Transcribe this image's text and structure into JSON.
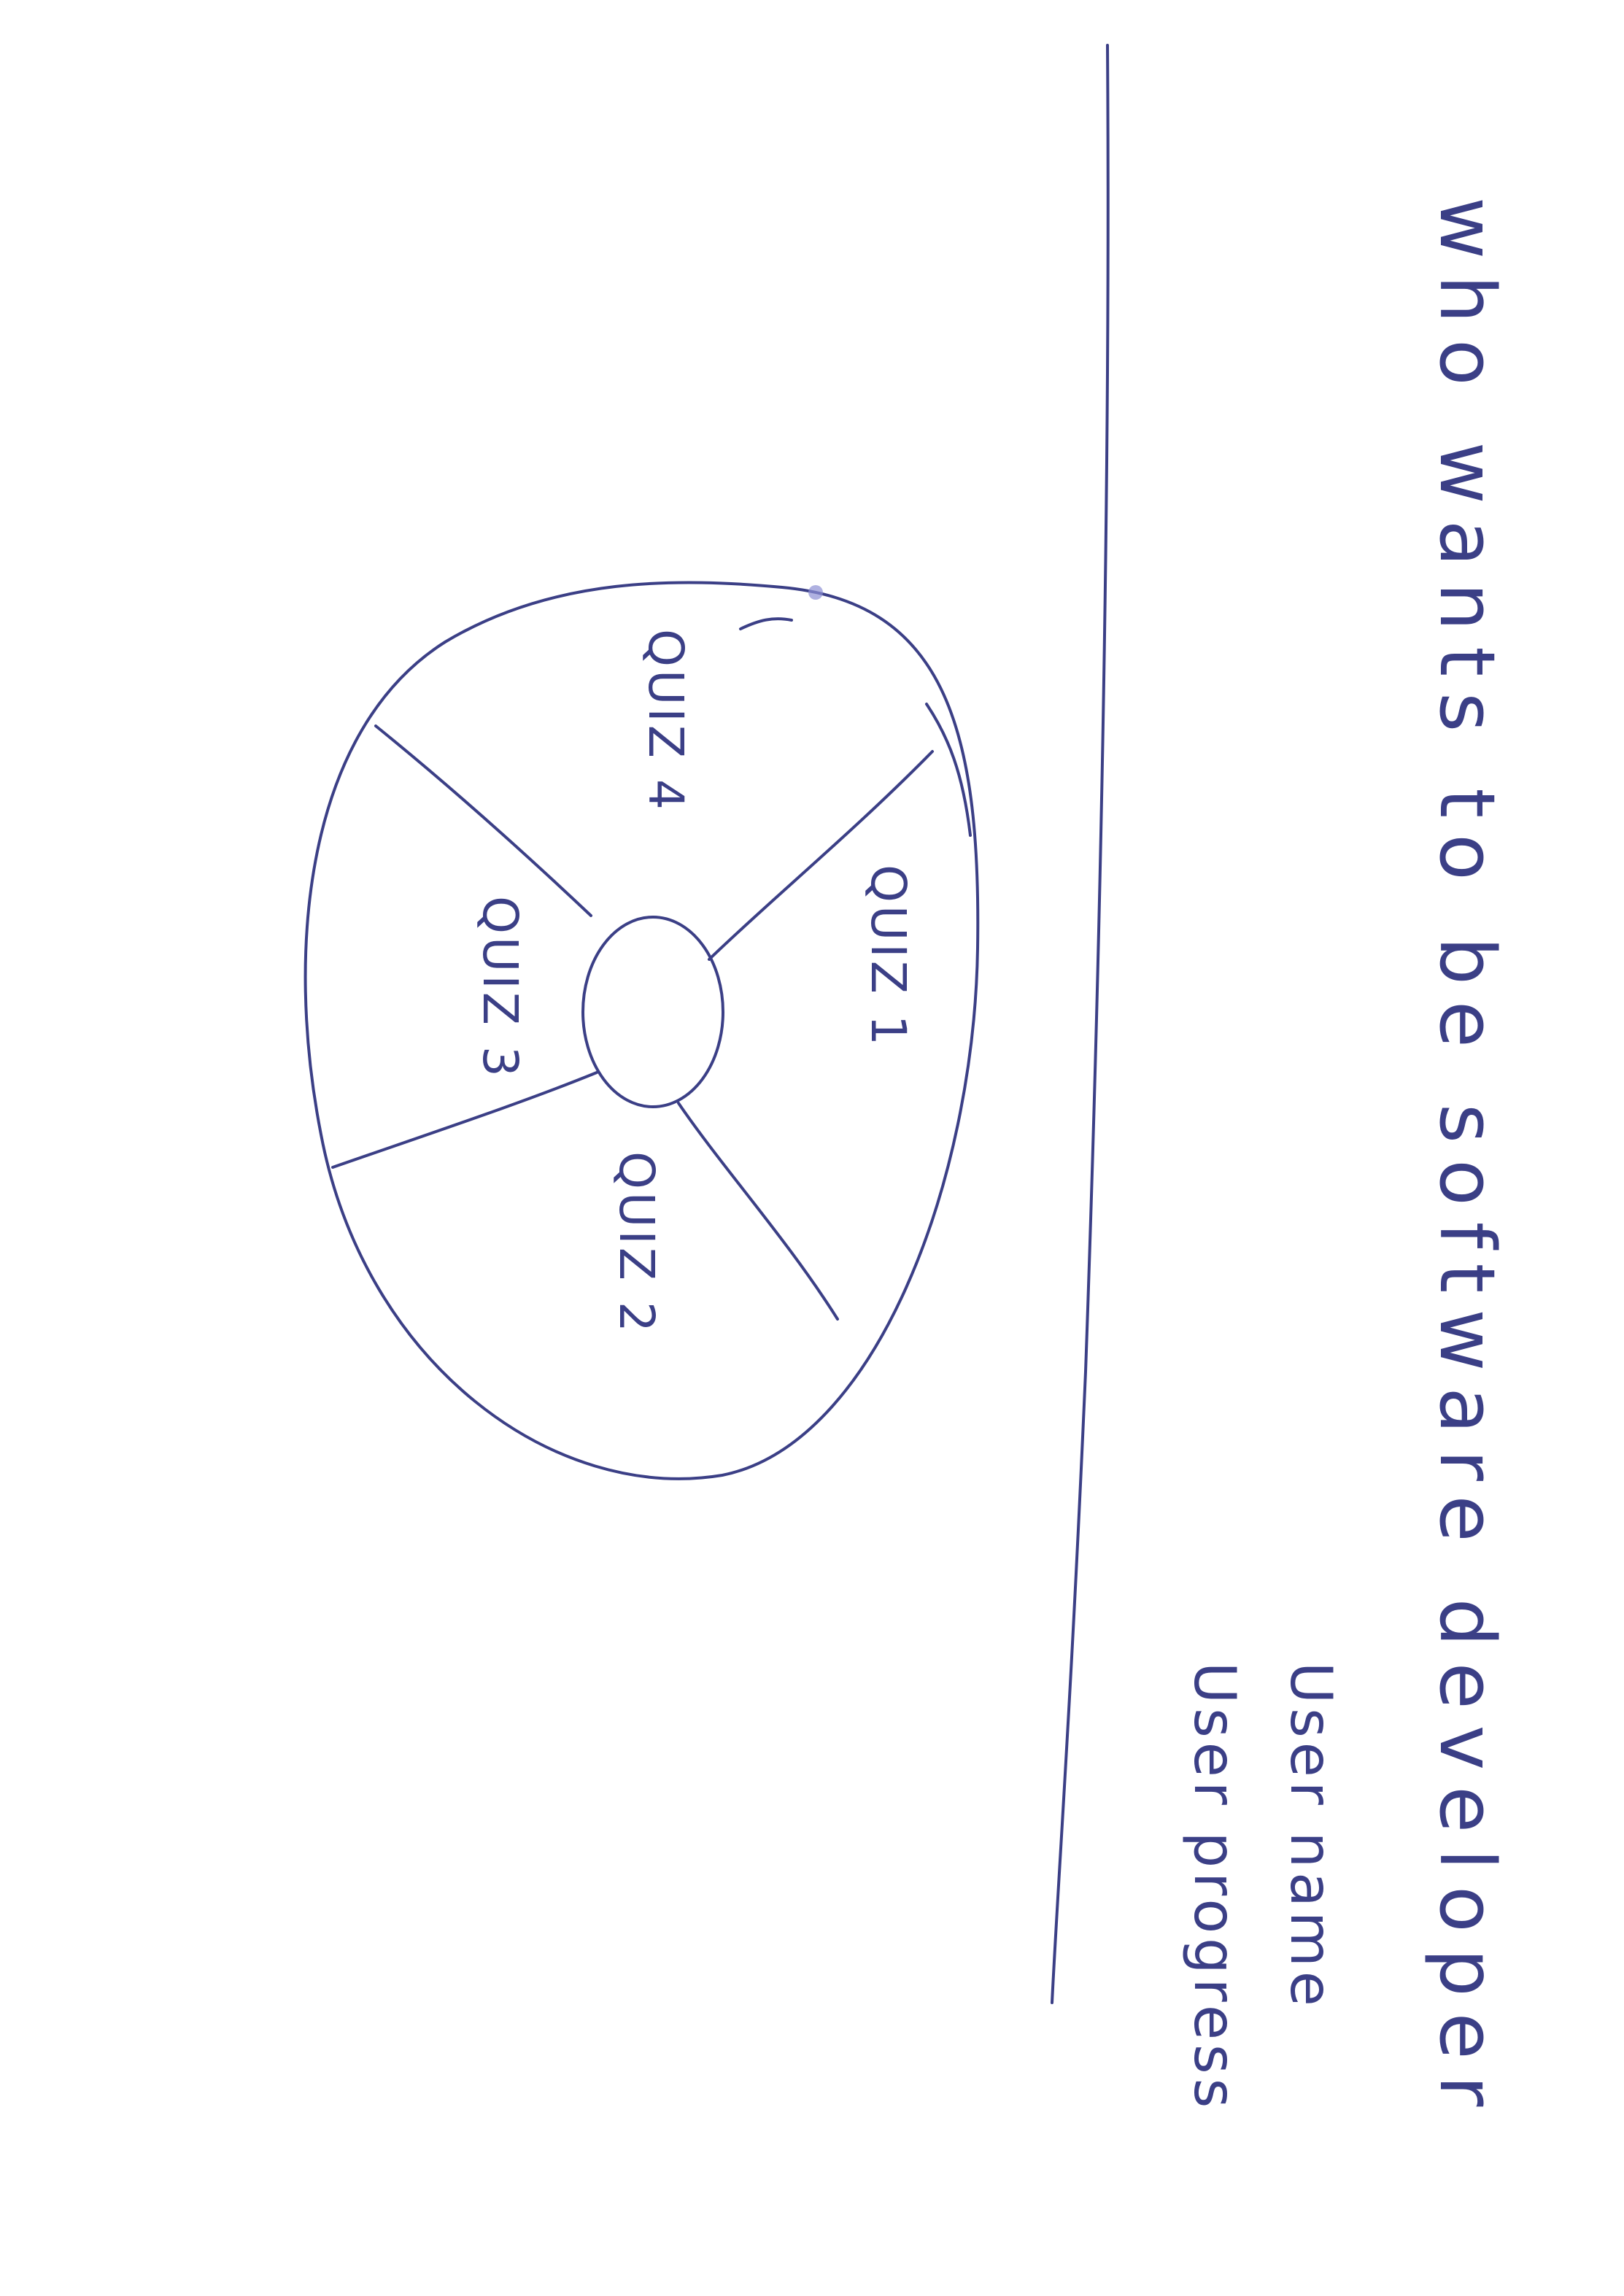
{
  "colors": {
    "ink": "#3b3f86",
    "paper": "#ffffff",
    "smudge": "#8d90d4"
  },
  "header": {
    "title": "who wants to be software developer"
  },
  "user_info": {
    "name_label": "User name",
    "progress_label": "User progress"
  },
  "quiz_wheel": {
    "segments": [
      {
        "label": "QUIZ 1"
      },
      {
        "label": "QUIZ 2"
      },
      {
        "label": "QUIZ 3"
      },
      {
        "label": "QUIZ 4"
      }
    ]
  }
}
